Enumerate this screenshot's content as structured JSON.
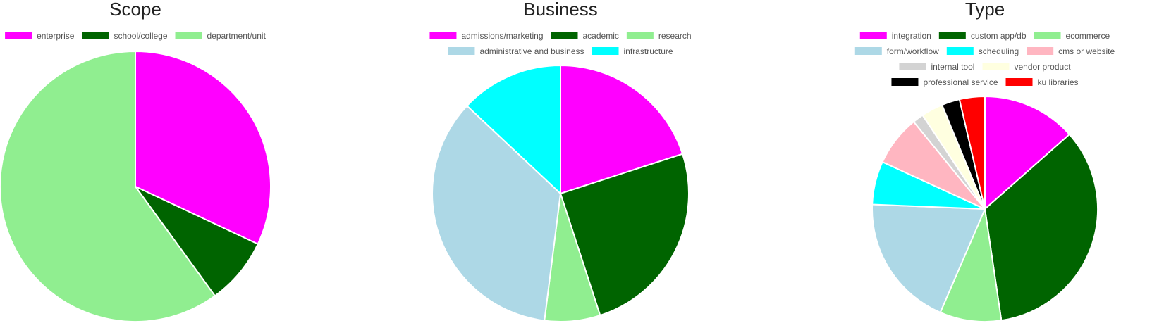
{
  "chart_data": [
    {
      "type": "pie",
      "title": "Scope",
      "slices": [
        {
          "label": "enterprise",
          "value": 32,
          "color": "#ff00ff"
        },
        {
          "label": "school/college",
          "value": 8,
          "color": "#006400"
        },
        {
          "label": "department/unit",
          "value": 60,
          "color": "#90ee90"
        }
      ]
    },
    {
      "type": "pie",
      "title": "Business",
      "slices": [
        {
          "label": "admissions/marketing",
          "value": 20,
          "color": "#ff00ff"
        },
        {
          "label": "academic",
          "value": 25,
          "color": "#006400"
        },
        {
          "label": "research",
          "value": 7,
          "color": "#90ee90"
        },
        {
          "label": "administrative and business",
          "value": 35,
          "color": "#add8e6"
        },
        {
          "label": "infrastructure",
          "value": 13,
          "color": "#00ffff"
        }
      ]
    },
    {
      "type": "pie",
      "title": "Type",
      "slices": [
        {
          "label": "integration",
          "value": 13,
          "color": "#ff00ff"
        },
        {
          "label": "custom app/db",
          "value": 33,
          "color": "#006400"
        },
        {
          "label": "ecommerce",
          "value": 8.5,
          "color": "#90ee90"
        },
        {
          "label": "form/workflow",
          "value": 18.5,
          "color": "#add8e6"
        },
        {
          "label": "scheduling",
          "value": 6,
          "color": "#00ffff"
        },
        {
          "label": "cms or website",
          "value": 7,
          "color": "#ffb6c1"
        },
        {
          "label": "internal tool",
          "value": 1.5,
          "color": "#d3d3d3"
        },
        {
          "label": "vendor product",
          "value": 3,
          "color": "#ffffe0"
        },
        {
          "label": "professional service",
          "value": 2.5,
          "color": "#000000"
        },
        {
          "label": "ku libraries",
          "value": 3.5,
          "color": "#ff0000"
        }
      ]
    }
  ]
}
